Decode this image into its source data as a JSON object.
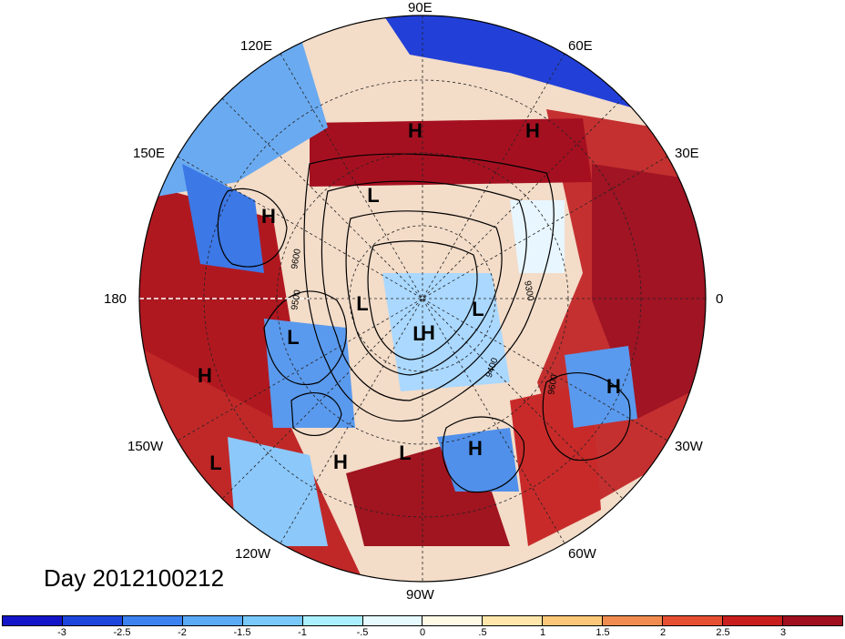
{
  "lon_labels": {
    "n90e": "90E",
    "n120e": "120E",
    "n60e": "60E",
    "n150e": "150E",
    "n30e": "30E",
    "n180": "180",
    "n0": "0",
    "n150w": "150W",
    "n30w": "30W",
    "n120w": "120W",
    "n60w": "60W",
    "n90w": "90W"
  },
  "day_label": "Day 2012100212",
  "pressure_centers": [
    "H",
    "H",
    "H",
    "H",
    "H",
    "H",
    "H",
    "H",
    "L",
    "L",
    "L",
    "L",
    "L",
    "L",
    "L"
  ],
  "contour_labels": [
    "9600",
    "9500",
    "9300",
    "9400",
    "9600"
  ],
  "colorbar": {
    "colors": [
      "#1414c8",
      "#1e46dc",
      "#3c82f0",
      "#5aaaf5",
      "#78c8fa",
      "#aaf0ff",
      "#e6faff",
      "#fffae6",
      "#ffe6aa",
      "#fac878",
      "#f08c50",
      "#e65032",
      "#c81e1e",
      "#a00f1e"
    ],
    "ticks": [
      "-3",
      "-2.5",
      "-2",
      "-1.5",
      "-1",
      "-.5",
      "0",
      ".5",
      "1",
      "1.5",
      "2",
      "2.5",
      "3"
    ]
  }
}
